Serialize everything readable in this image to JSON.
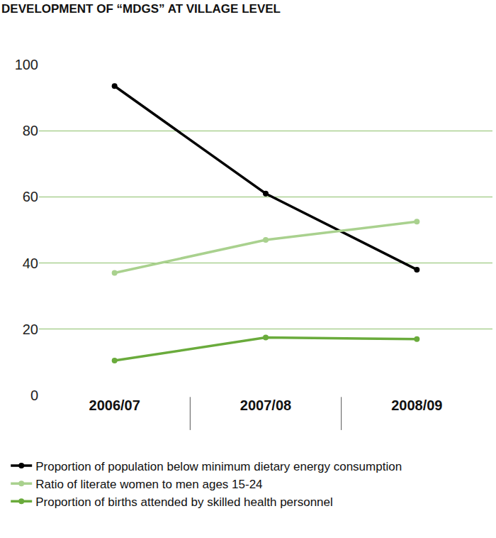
{
  "chart_data": {
    "type": "line",
    "title": "DEVELOPMENT OF “MDGS” AT VILLAGE LEVEL",
    "categories": [
      "2006/07",
      "2007/08",
      "2008/09"
    ],
    "series": [
      {
        "name": "Proportion of population below minimum dietary energy consumption",
        "color": "#000000",
        "marker": "circle",
        "values": [
          93.5,
          61,
          38
        ]
      },
      {
        "name": "Ratio of literate women to men ages 15-24",
        "color": "#a9d18e",
        "marker": "circle",
        "values": [
          37,
          47,
          52.5
        ]
      },
      {
        "name": "Proportion of births attended by skilled health personnel",
        "color": "#6aab3c",
        "marker": "circle",
        "values": [
          10.5,
          17.5,
          17
        ]
      }
    ],
    "ylim": [
      0,
      100
    ],
    "yticks": [
      0,
      20,
      40,
      60,
      80,
      100
    ],
    "grid": true,
    "legend": "bottom"
  }
}
